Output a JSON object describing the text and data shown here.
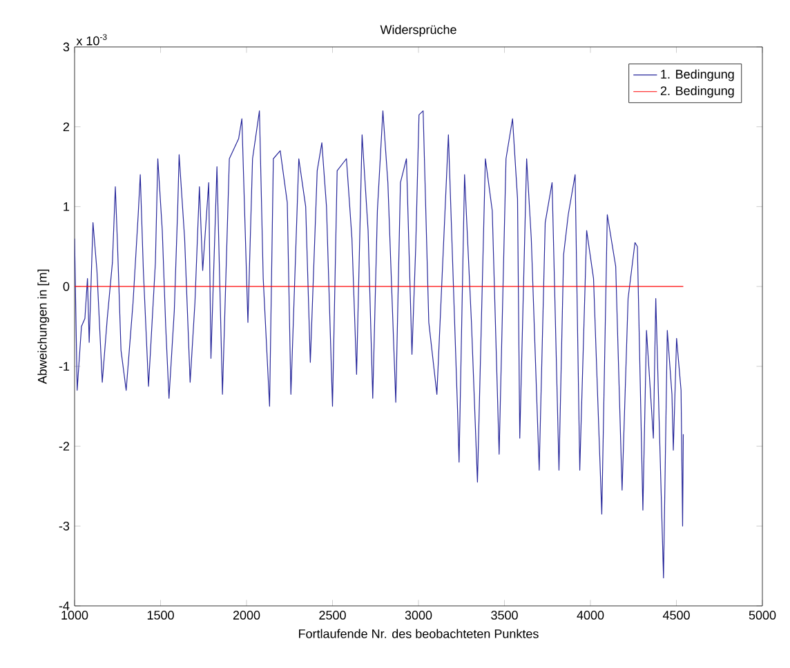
{
  "chart_data": {
    "type": "line",
    "title": "Widersprüche",
    "xlabel": "Fortlaufende Nr. des beobachteten Punktes",
    "ylabel": "Abweichungen in [m]",
    "annotations": [
      "x 10$^{-3}$"
    ],
    "xlim": [
      1000,
      5000
    ],
    "xticks": [
      1000,
      1500,
      2000,
      2500,
      3000,
      3500,
      4000,
      4500,
      5000
    ],
    "ylim": [
      -4,
      3
    ],
    "yticks": [
      -4,
      -3,
      -2,
      -1,
      0,
      1,
      2,
      3
    ],
    "legend": "top right",
    "grid": false,
    "marker": "none",
    "line_style": "solid",
    "series": [
      {
        "name": "1. Bedingung",
        "color": "#26269a",
        "x": [
          1000,
          1015,
          1040,
          1060,
          1075,
          1085,
          1107,
          1130,
          1161,
          1190,
          1220,
          1237,
          1250,
          1270,
          1300,
          1340,
          1370,
          1382,
          1400,
          1430,
          1470,
          1484,
          1510,
          1530,
          1549,
          1580,
          1600,
          1608,
          1640,
          1672,
          1700,
          1726,
          1745,
          1780,
          1793,
          1828,
          1860,
          1900,
          1954,
          1973,
          2008,
          2035,
          2075,
          2097,
          2134,
          2156,
          2196,
          2237,
          2258,
          2304,
          2344,
          2371,
          2411,
          2438,
          2465,
          2500,
          2527,
          2581,
          2613,
          2640,
          2672,
          2707,
          2734,
          2761,
          2793,
          2822,
          2868,
          2895,
          2930,
          2962,
          2984,
          3003,
          3027,
          3060,
          3107,
          3174,
          3228,
          3236,
          3268,
          3308,
          3343,
          3389,
          3429,
          3469,
          3509,
          3547,
          3576,
          3589,
          3629,
          3656,
          3702,
          3737,
          3777,
          3817,
          3844,
          3871,
          3911,
          3938,
          3978,
          4018,
          4066,
          4098,
          4147,
          4184,
          4219,
          4259,
          4273,
          4305,
          4326,
          4366,
          4380,
          4425,
          4447,
          4474,
          4482,
          4501,
          4527,
          4536,
          4540
        ],
        "values": [
          0.6,
          -1.3,
          -0.5,
          -0.4,
          0.1,
          -0.7,
          0.8,
          0.2,
          -1.2,
          -0.4,
          0.3,
          1.25,
          0.5,
          -0.8,
          -1.3,
          -0.2,
          0.9,
          1.4,
          0.2,
          -1.25,
          0.3,
          1.6,
          0.7,
          -0.5,
          -1.4,
          -0.3,
          1.0,
          1.65,
          0.6,
          -1.2,
          -0.2,
          1.25,
          0.2,
          1.3,
          -0.9,
          1.5,
          -1.35,
          1.6,
          1.85,
          2.1,
          -0.45,
          1.6,
          2.2,
          0.1,
          -1.5,
          1.6,
          1.7,
          1.05,
          -1.35,
          1.6,
          1.0,
          -0.95,
          1.45,
          1.8,
          1.0,
          -1.5,
          1.45,
          1.6,
          0.6,
          -1.1,
          1.9,
          0.7,
          -1.4,
          0.95,
          2.2,
          1.3,
          -1.45,
          1.3,
          1.6,
          -0.85,
          0.5,
          2.15,
          2.2,
          -0.45,
          -1.35,
          1.9,
          -1.6,
          -2.2,
          1.4,
          -0.45,
          -2.45,
          1.6,
          0.95,
          -2.1,
          1.6,
          2.1,
          1.1,
          -1.9,
          1.6,
          0.6,
          -2.3,
          0.8,
          1.3,
          -2.3,
          0.4,
          0.9,
          1.4,
          -2.3,
          0.7,
          0.1,
          -2.85,
          0.9,
          0.25,
          -2.55,
          -0.15,
          0.55,
          0.5,
          -2.8,
          -0.55,
          -1.9,
          -0.15,
          -3.65,
          -0.55,
          -1.35,
          -2.05,
          -0.65,
          -1.3,
          -3.0,
          -1.85
        ]
      },
      {
        "name": "2. Bedingung",
        "color": "#ff0000",
        "x": [
          1000,
          4540
        ],
        "values": [
          0,
          0
        ]
      }
    ]
  }
}
